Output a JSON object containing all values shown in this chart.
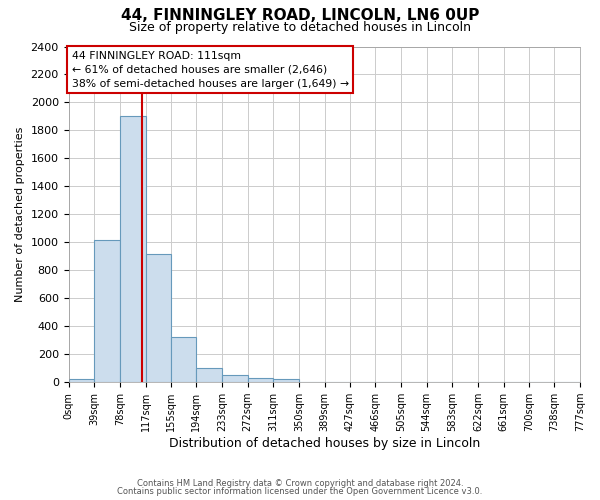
{
  "title": "44, FINNINGLEY ROAD, LINCOLN, LN6 0UP",
  "subtitle": "Size of property relative to detached houses in Lincoln",
  "xlabel": "Distribution of detached houses by size in Lincoln",
  "ylabel": "Number of detached properties",
  "bin_edges": [
    0,
    39,
    78,
    117,
    155,
    194,
    233,
    272,
    311,
    350,
    389,
    427,
    466,
    505,
    544,
    583,
    622,
    661,
    700,
    738,
    777
  ],
  "bin_labels": [
    "0sqm",
    "39sqm",
    "78sqm",
    "117sqm",
    "155sqm",
    "194sqm",
    "233sqm",
    "272sqm",
    "311sqm",
    "350sqm",
    "389sqm",
    "427sqm",
    "466sqm",
    "505sqm",
    "544sqm",
    "583sqm",
    "622sqm",
    "661sqm",
    "700sqm",
    "738sqm",
    "777sqm"
  ],
  "bar_heights": [
    20,
    1020,
    1900,
    920,
    320,
    105,
    50,
    30,
    20,
    0,
    0,
    0,
    0,
    0,
    0,
    0,
    0,
    0,
    0,
    0
  ],
  "bar_color": "#ccdded",
  "bar_edge_color": "#6699bb",
  "property_line_x": 111,
  "property_line_color": "#cc0000",
  "annotation_line1": "44 FINNINGLEY ROAD: 111sqm",
  "annotation_line2": "← 61% of detached houses are smaller (2,646)",
  "annotation_line3": "38% of semi-detached houses are larger (1,649) →",
  "annotation_box_color": "white",
  "annotation_box_edge_color": "#cc0000",
  "ylim": [
    0,
    2400
  ],
  "yticks": [
    0,
    200,
    400,
    600,
    800,
    1000,
    1200,
    1400,
    1600,
    1800,
    2000,
    2200,
    2400
  ],
  "footer_line1": "Contains HM Land Registry data © Crown copyright and database right 2024.",
  "footer_line2": "Contains public sector information licensed under the Open Government Licence v3.0.",
  "background_color": "#ffffff",
  "plot_background_color": "#ffffff",
  "grid_color": "#cccccc"
}
